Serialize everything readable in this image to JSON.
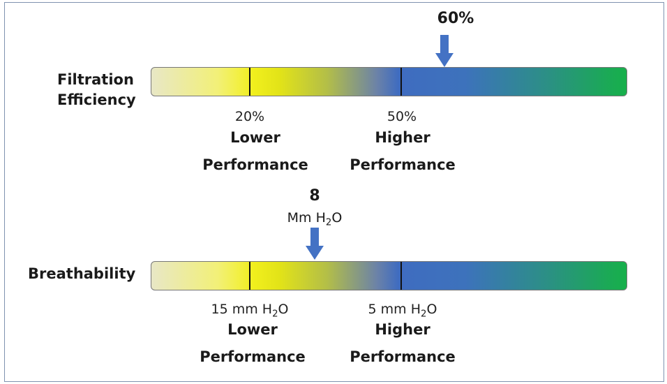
{
  "filtration": {
    "label_line1": "Filtration",
    "label_line2": "Efficiency",
    "marker_value": "60%",
    "ticks": [
      {
        "value": "20%",
        "performance_line1": "Lower",
        "performance_line2": "Performance"
      },
      {
        "value": "50%",
        "performance_line1": "Higher",
        "performance_line2": "Performance"
      }
    ]
  },
  "breathability": {
    "label": "Breathability",
    "marker_value": "8",
    "marker_unit_prefix": "Mm H",
    "marker_unit_sub": "2",
    "marker_unit_suffix": "O",
    "ticks": [
      {
        "value_prefix": "15 mm H",
        "value_sub": "2",
        "value_suffix": "O",
        "performance_line1": "Lower",
        "performance_line2": "Performance"
      },
      {
        "value_prefix": "5 mm H",
        "value_sub": "2",
        "value_suffix": "O",
        "performance_line1": "Higher",
        "performance_line2": "Performance"
      }
    ]
  },
  "colors": {
    "bar_low": "#e8e7c6",
    "bar_yellow": "#f1ef1d",
    "bar_blue": "#3f6cc0",
    "bar_green": "#17b04b",
    "arrow": "#4472c4",
    "frame": "#7f93b0"
  },
  "icons": {
    "marker": "down-arrow-icon"
  }
}
